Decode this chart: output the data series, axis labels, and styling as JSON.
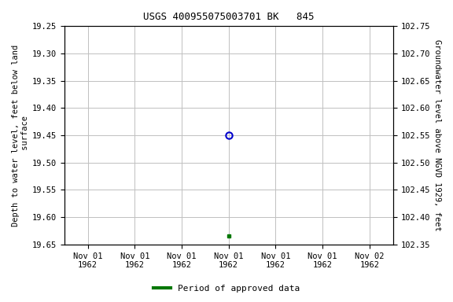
{
  "title": "USGS 400955075003701 BK   845",
  "ylabel_left": "Depth to water level, feet below land\n surface",
  "ylabel_right": "Groundwater level above NGVD 1929, feet",
  "ylim_left": [
    19.65,
    19.25
  ],
  "ylim_right": [
    102.35,
    102.75
  ],
  "yticks_left": [
    19.25,
    19.3,
    19.35,
    19.4,
    19.45,
    19.5,
    19.55,
    19.6,
    19.65
  ],
  "yticks_right": [
    102.75,
    102.7,
    102.65,
    102.6,
    102.55,
    102.5,
    102.45,
    102.4,
    102.35
  ],
  "xtick_positions": [
    0,
    1,
    2,
    3,
    4,
    5,
    6
  ],
  "xtick_labels": [
    "Nov 01\n1962",
    "Nov 01\n1962",
    "Nov 01\n1962",
    "Nov 01\n1962",
    "Nov 01\n1962",
    "Nov 01\n1962",
    "Nov 02\n1962"
  ],
  "xlim": [
    -0.5,
    6.5
  ],
  "data_point_open_x": 3,
  "data_point_open_y": 19.45,
  "data_point_filled_x": 3,
  "data_point_filled_y": 19.635,
  "open_marker_color": "#0000cc",
  "filled_marker_color": "#007700",
  "legend_label": "Period of approved data",
  "legend_color": "#007700",
  "background_color": "#ffffff",
  "grid_color": "#c0c0c0",
  "title_fontsize": 9,
  "label_fontsize": 7.5,
  "tick_fontsize": 7.5,
  "legend_fontsize": 8
}
